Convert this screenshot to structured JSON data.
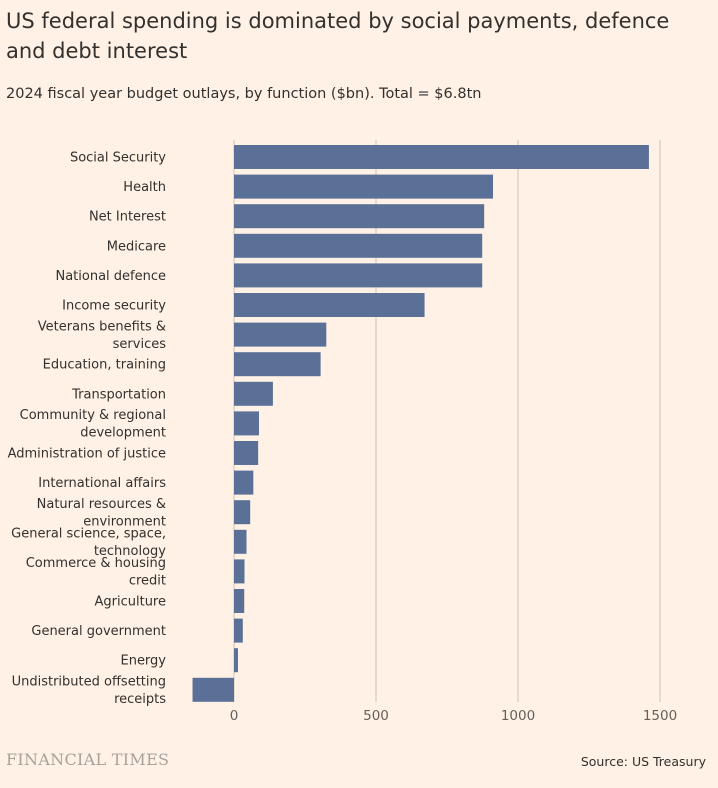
{
  "title": "US federal spending is dominated by social payments, defence and debt interest",
  "subtitle": "2024 fiscal year budget outlays, by function ($bn). Total = $6.8tn",
  "footer": {
    "brand": "FINANCIAL TIMES",
    "source": "Source: US Treasury"
  },
  "colors": {
    "background": "#FFF1E5",
    "bar": "#5A7096",
    "grid": "#CCC1B7"
  },
  "chart_data": {
    "type": "bar",
    "orientation": "horizontal",
    "categories": [
      [
        "Social Security"
      ],
      [
        "Health"
      ],
      [
        "Net Interest"
      ],
      [
        "Medicare"
      ],
      [
        "National defence"
      ],
      [
        "Income security"
      ],
      [
        "Veterans benefits &",
        "services"
      ],
      [
        "Education, training"
      ],
      [
        "Transportation"
      ],
      [
        "Community & regional",
        "development"
      ],
      [
        "Administration of justice"
      ],
      [
        "International affairs"
      ],
      [
        "Natural resources &",
        "environment"
      ],
      [
        "General science, space,",
        "technology"
      ],
      [
        "Commerce & housing",
        "credit"
      ],
      [
        "Agriculture"
      ],
      [
        "General government"
      ],
      [
        "Energy"
      ],
      [
        "Undistributed offsetting",
        "receipts"
      ]
    ],
    "values": [
      1461,
      912,
      881,
      874,
      874,
      671,
      325,
      305,
      137,
      88,
      85,
      68,
      57,
      44,
      37,
      36,
      31,
      14,
      -146
    ],
    "xlim": [
      -150,
      1500
    ],
    "xticks": [
      0,
      500,
      1000,
      1500
    ],
    "xlabel": "",
    "ylabel": "",
    "grid": true
  }
}
